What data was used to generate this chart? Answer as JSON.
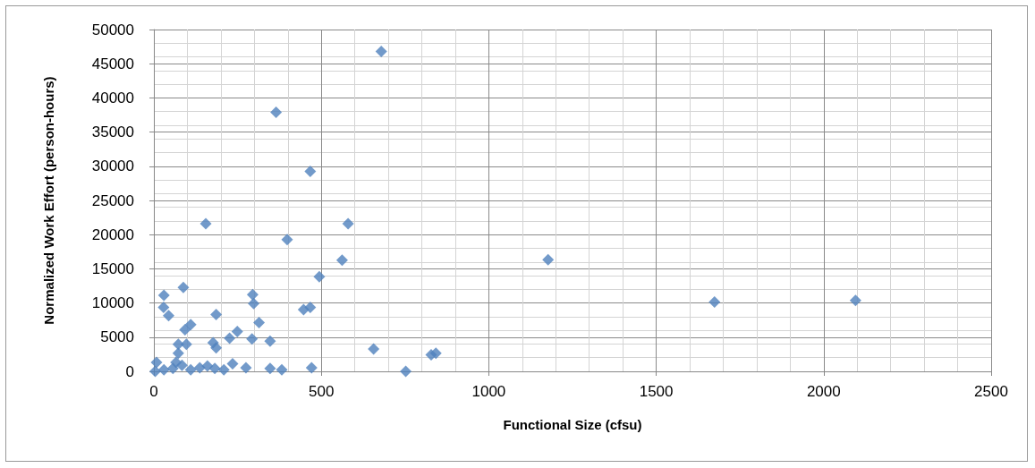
{
  "chart_data": {
    "type": "scatter",
    "xlabel": "Functional Size (cfsu)",
    "ylabel": "Normalized Work Effort (person-hours)",
    "xlim": [
      0,
      2500
    ],
    "xticks": [
      0,
      500,
      1000,
      1500,
      2000,
      2500
    ],
    "ylim": [
      0,
      50000
    ],
    "yticks": [
      0,
      5000,
      10000,
      15000,
      20000,
      25000,
      30000,
      35000,
      40000,
      45000,
      50000
    ],
    "grid": true,
    "marker": "diamond",
    "x": [
      679,
      365,
      467,
      580,
      155,
      398,
      562,
      1177,
      494,
      447,
      467,
      1674,
      2095,
      656,
      828,
      842,
      471,
      752,
      30,
      88,
      29,
      44,
      186,
      110,
      93,
      295,
      298,
      314,
      249,
      226,
      177,
      186,
      293,
      347,
      73,
      97,
      73,
      8,
      4,
      30,
      57,
      84,
      110,
      137,
      160,
      182,
      209,
      235,
      275,
      347,
      382,
      66
    ],
    "series": [
      {
        "color": "#4f81bd",
        "values": [
          46800,
          37900,
          29240,
          21600,
          21600,
          19280,
          16270,
          16320,
          13850,
          9040,
          9350,
          10140,
          10360,
          3260,
          2430,
          2650,
          530,
          0,
          11110,
          12260,
          9350,
          8160,
          8300,
          6830,
          6080,
          11240,
          9920,
          7140,
          5820,
          4850,
          4190,
          3440,
          4760,
          4410,
          3970,
          3970,
          2650,
          1320,
          0,
          220,
          440,
          880,
          220,
          530,
          790,
          440,
          220,
          1100,
          530,
          440,
          220,
          1320
        ]
      }
    ]
  }
}
